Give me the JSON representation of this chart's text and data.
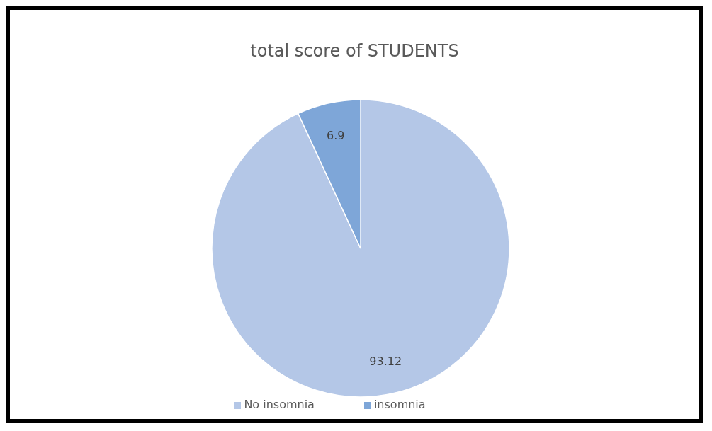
{
  "chart_data": {
    "type": "pie",
    "title": "total score of STUDENTS",
    "categories": [
      "No insomnia",
      "insomnia"
    ],
    "values": [
      93.12,
      6.9
    ],
    "colors": [
      "#b4c7e7",
      "#7ea6d8"
    ],
    "data_labels": true,
    "legend": "bottom"
  }
}
